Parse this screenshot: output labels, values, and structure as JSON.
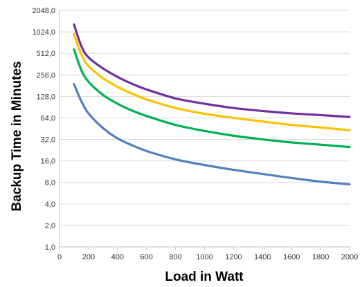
{
  "chart_data": {
    "type": "line",
    "title": "",
    "xlabel": "Load in Watt",
    "ylabel": "Backup Time in Minutes",
    "x_ticks": [
      "0",
      "200",
      "400",
      "600",
      "800",
      "1000",
      "1200",
      "1400",
      "1600",
      "1800",
      "2000"
    ],
    "y_ticks": [
      "1,0",
      "2,0",
      "4,0",
      "8,0",
      "16,0",
      "32,0",
      "64,0",
      "128,0",
      "256,0",
      "512,0",
      "1024,0",
      "2048,0"
    ],
    "xlim": [
      0,
      2000
    ],
    "ylim": [
      1,
      2048
    ],
    "y_scale": "log2",
    "grid": "horizontal",
    "legend": "none",
    "x": [
      100,
      150,
      200,
      300,
      400,
      500,
      600,
      800,
      1000,
      1200,
      1400,
      1600,
      1800,
      2000
    ],
    "series": [
      {
        "color": "#7030a0",
        "values": [
          1300,
          650,
          450,
          315,
          240,
          192,
          160,
          120,
          101,
          88,
          80,
          74,
          70,
          66
        ]
      },
      {
        "color": "#ffc000",
        "values": [
          950,
          500,
          340,
          230,
          174,
          140,
          116,
          88,
          73,
          64,
          57,
          51,
          47,
          43
        ]
      },
      {
        "color": "#00b050",
        "values": [
          580,
          300,
          205,
          134,
          101,
          81,
          68,
          51,
          42,
          36,
          32,
          29,
          27,
          25
        ]
      },
      {
        "color": "#4f81bd",
        "values": [
          190,
          110,
          74,
          46,
          33,
          26.5,
          22,
          16.8,
          14,
          12,
          10.5,
          9.2,
          8.2,
          7.5
        ]
      }
    ]
  }
}
